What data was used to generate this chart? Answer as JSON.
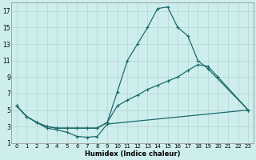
{
  "xlabel": "Humidex (Indice chaleur)",
  "x": [
    0,
    1,
    2,
    3,
    4,
    5,
    6,
    7,
    8,
    9,
    10,
    11,
    12,
    13,
    14,
    15,
    16,
    17,
    18,
    19,
    20,
    21,
    22,
    23
  ],
  "line1": [
    5.5,
    4.2,
    3.5,
    3.0,
    2.8,
    2.8,
    2.8,
    2.8,
    2.8,
    3.5,
    7.2,
    11.0,
    13.0,
    15.0,
    17.3,
    17.5,
    15.0,
    14.0,
    11.0,
    10.0,
    null,
    null,
    null,
    5.0
  ],
  "line2": [
    5.5,
    4.2,
    3.5,
    3.0,
    2.8,
    2.8,
    2.8,
    2.8,
    2.8,
    3.5,
    5.5,
    6.2,
    6.8,
    7.5,
    8.0,
    8.5,
    9.0,
    9.8,
    10.5,
    10.3,
    9.0,
    null,
    null,
    5.0
  ],
  "line3": [
    5.5,
    4.2,
    3.5,
    2.8,
    2.6,
    2.3,
    1.8,
    1.7,
    1.8,
    3.3,
    null,
    null,
    null,
    null,
    null,
    null,
    null,
    null,
    null,
    null,
    null,
    null,
    null,
    5.0
  ],
  "bg_color": "#ceeeed",
  "grid_color": "#b8d8d8",
  "line_color": "#1a6b6b",
  "ylim": [
    1,
    18
  ],
  "yticks": [
    1,
    3,
    5,
    7,
    9,
    11,
    13,
    15,
    17
  ],
  "xlim": [
    -0.5,
    23.5
  ]
}
